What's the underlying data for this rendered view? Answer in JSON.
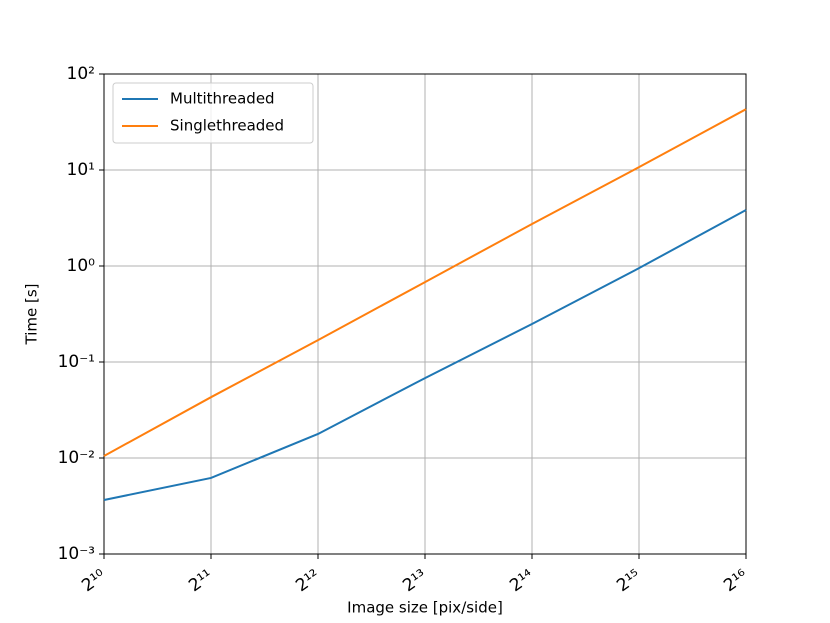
{
  "chart_data": {
    "type": "line",
    "x_label": "Image size [pix/side]",
    "y_label": "Time [s]",
    "x": [
      1024,
      2048,
      4096,
      8192,
      16384,
      32768,
      65536
    ],
    "series": [
      {
        "name": "Multithreaded",
        "color": "#1f77b4",
        "values": [
          0.00365,
          0.0062,
          0.0178,
          0.068,
          0.249,
          0.95,
          3.83
        ]
      },
      {
        "name": "Singlethreaded",
        "color": "#ff7f0e",
        "values": [
          0.0105,
          0.043,
          0.169,
          0.68,
          2.74,
          10.7,
          43
        ]
      }
    ],
    "xscale": "log2",
    "yscale": "log",
    "xlim": [
      1024,
      65536
    ],
    "ylim": [
      0.001,
      100
    ],
    "xticks": [
      {
        "value": 1024,
        "label": "2¹⁰"
      },
      {
        "value": 2048,
        "label": "2¹¹"
      },
      {
        "value": 4096,
        "label": "2¹²"
      },
      {
        "value": 8192,
        "label": "2¹³"
      },
      {
        "value": 16384,
        "label": "2¹⁴"
      },
      {
        "value": 32768,
        "label": "2¹⁵"
      },
      {
        "value": 65536,
        "label": "2¹⁶"
      }
    ],
    "yticks": [
      {
        "value": 0.001,
        "label": "10⁻³"
      },
      {
        "value": 0.01,
        "label": "10⁻²"
      },
      {
        "value": 0.1,
        "label": "10⁻¹"
      },
      {
        "value": 1,
        "label": "10⁰"
      },
      {
        "value": 10,
        "label": "10¹"
      },
      {
        "value": 100,
        "label": "10²"
      }
    ],
    "grid": true,
    "legend": "upper-left"
  }
}
